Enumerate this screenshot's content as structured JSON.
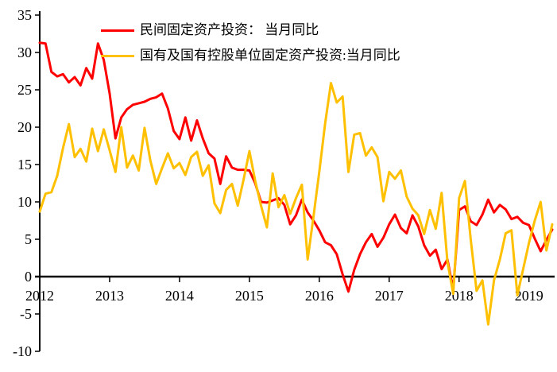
{
  "chart_data": {
    "type": "line",
    "title": "",
    "x_monthly_from": "2012-01",
    "x_monthly_to": "2019-05",
    "x_tick_labels": [
      "2012",
      "2013",
      "2014",
      "2015",
      "2016",
      "2017",
      "2018",
      "2019"
    ],
    "ylim": [
      -10,
      35
    ],
    "y_ticks": [
      35,
      30,
      25,
      20,
      15,
      10,
      5,
      0,
      -5,
      -10
    ],
    "grid": "off",
    "axis_color": "#000000",
    "background": "#FFFFFF",
    "legend_position": "top-left-inside",
    "series": [
      {
        "name": "民间固定资产投资： 当月同比",
        "color": "#FF0000",
        "unit": "%",
        "values": [
          31.3,
          31.2,
          27.4,
          26.8,
          27.1,
          26.0,
          26.7,
          25.6,
          27.9,
          26.5,
          31.2,
          29.0,
          24.5,
          18.5,
          21.3,
          22.4,
          23.0,
          23.2,
          23.4,
          23.8,
          24.0,
          24.5,
          22.5,
          19.5,
          18.4,
          21.3,
          18.2,
          20.9,
          18.5,
          16.5,
          15.8,
          12.4,
          16.1,
          14.6,
          14.3,
          14.3,
          14.2,
          12.5,
          10.0,
          9.9,
          10.2,
          10.5,
          9.6,
          7.0,
          8.2,
          10.3,
          8.6,
          7.5,
          6.2,
          4.6,
          4.2,
          3.0,
          0.3,
          -2.0,
          0.9,
          3.0,
          4.6,
          5.7,
          4.0,
          5.2,
          7.0,
          8.3,
          6.5,
          5.8,
          8.2,
          6.7,
          4.2,
          2.8,
          3.6,
          1.0,
          2.3,
          -1.8,
          8.9,
          9.4,
          7.4,
          6.9,
          8.3,
          10.3,
          8.6,
          9.6,
          9.0,
          7.7,
          8.0,
          7.2,
          6.9,
          5.1,
          3.4,
          4.9,
          6.3
        ]
      },
      {
        "name": "国有及国有控股单位固定资产投资:当月同比",
        "color": "#FFC000",
        "unit": "%",
        "values": [
          8.7,
          11.1,
          11.3,
          13.5,
          17.2,
          20.4,
          16.0,
          17.1,
          15.4,
          19.8,
          16.8,
          19.7,
          16.9,
          14.0,
          20.0,
          14.6,
          16.2,
          14.2,
          19.9,
          15.5,
          12.4,
          14.5,
          16.5,
          14.5,
          15.2,
          13.6,
          16.0,
          16.7,
          13.5,
          14.9,
          9.8,
          8.5,
          11.6,
          12.4,
          9.5,
          13.0,
          16.8,
          12.8,
          9.5,
          6.6,
          13.8,
          9.3,
          10.9,
          8.4,
          10.5,
          12.3,
          2.3,
          8.0,
          14.0,
          20.5,
          25.9,
          23.3,
          24.1,
          14.0,
          19.0,
          19.2,
          16.2,
          17.3,
          16.0,
          10.1,
          14.0,
          13.1,
          14.2,
          10.7,
          9.1,
          8.2,
          5.7,
          8.9,
          6.4,
          11.2,
          2.0,
          -2.3,
          10.5,
          12.8,
          5.0,
          -1.9,
          -0.5,
          -6.4,
          -0.5,
          2.3,
          5.8,
          6.2,
          -2.5,
          1.0,
          4.5,
          7.5,
          10.0,
          3.5,
          7.0
        ]
      }
    ]
  }
}
